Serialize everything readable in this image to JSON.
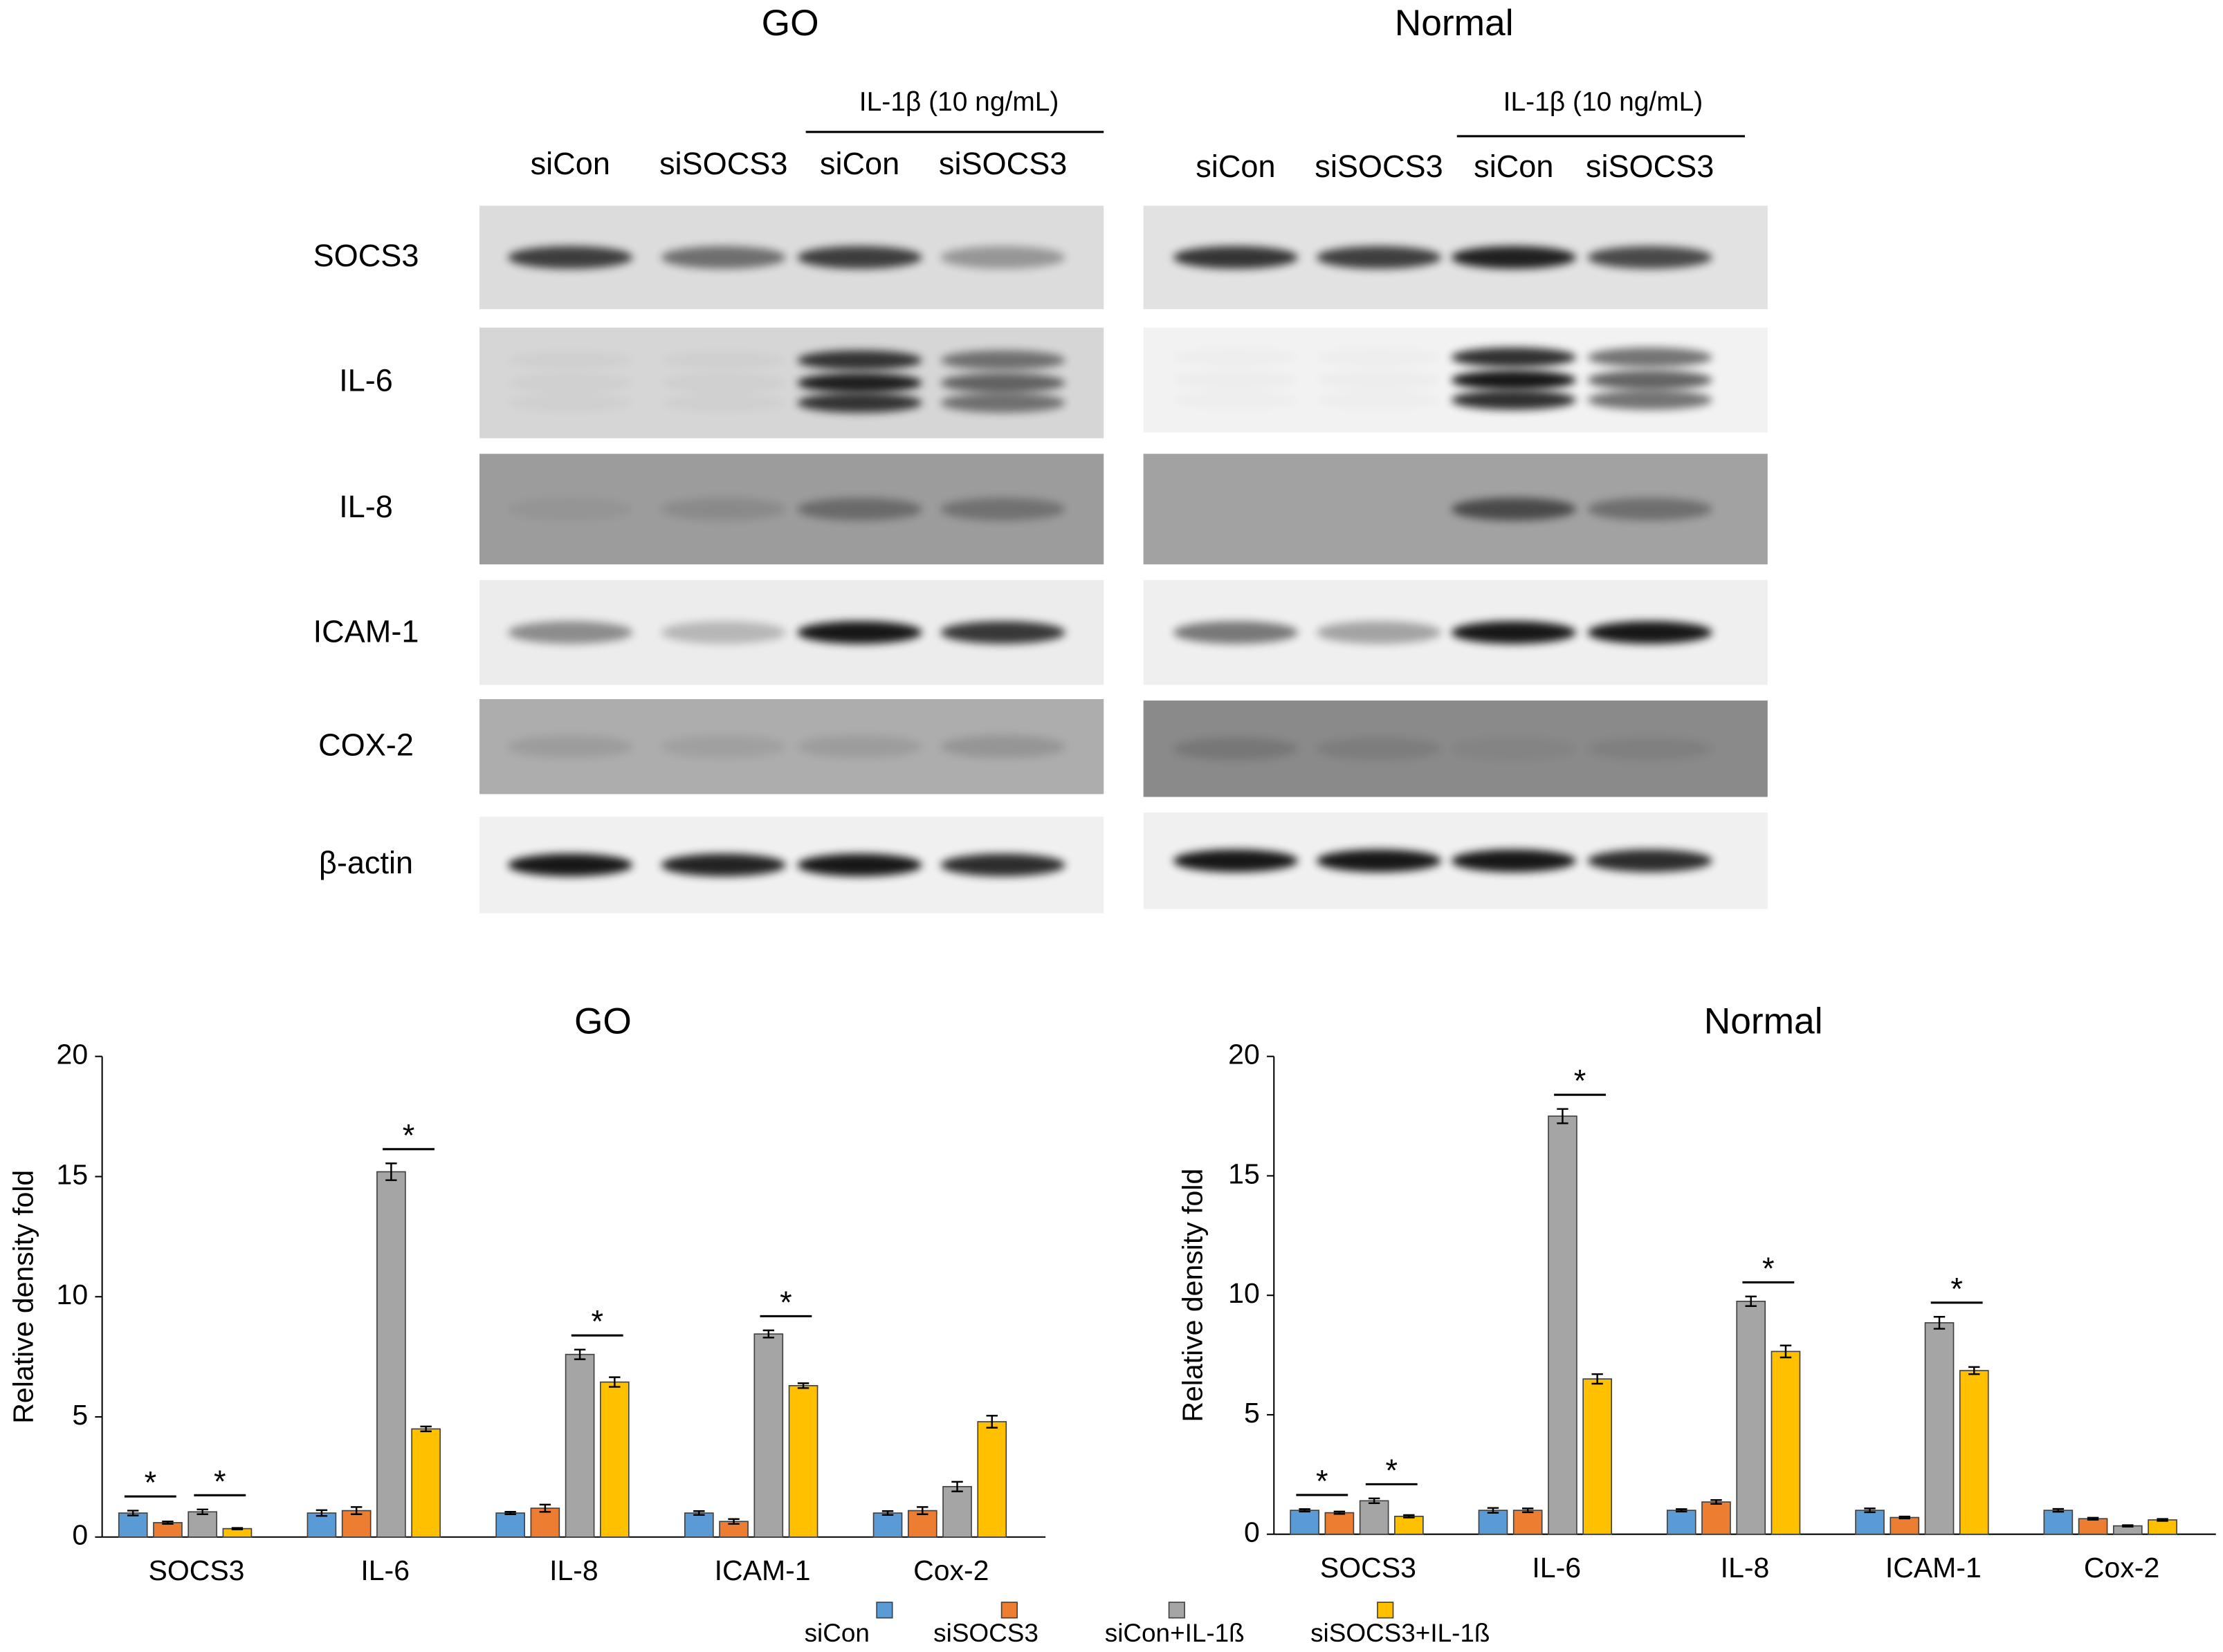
{
  "blots": {
    "proteins": [
      "SOCS3",
      "IL-6",
      "IL-8",
      "ICAM-1",
      "COX-2",
      "β-actin"
    ],
    "panels": [
      {
        "title": "GO",
        "treatment": "IL-1β (10 ng/mL)",
        "lanes": [
          "siCon",
          "siSOCS3",
          "siCon",
          "siSOCS3"
        ]
      },
      {
        "title": "Normal",
        "treatment": "IL-1β (10 ng/mL)",
        "lanes": [
          "siCon",
          "siSOCS3",
          "siCon",
          "siSOCS3"
        ]
      }
    ]
  },
  "chart_data": [
    {
      "type": "bar",
      "title": "GO",
      "ylabel": "Relative density fold",
      "categories": [
        "SOCS3",
        "IL-6",
        "IL-8",
        "ICAM-1",
        "Cox-2"
      ],
      "ylim": [
        0,
        20
      ],
      "yticks": [
        0,
        5,
        10,
        15,
        20
      ],
      "series": [
        {
          "name": "siCon",
          "color": "#5b9bd5",
          "values": [
            1,
            1,
            1,
            1,
            1
          ],
          "errors": [
            0.1,
            0.12,
            0.05,
            0.08,
            0.08
          ]
        },
        {
          "name": "siSOCS3",
          "color": "#ed7d31",
          "values": [
            0.6,
            1.1,
            1.2,
            0.65,
            1.1
          ],
          "errors": [
            0.05,
            0.15,
            0.15,
            0.1,
            0.15
          ]
        },
        {
          "name": "siCon+IL-1ß",
          "color": "#a5a5a5",
          "values": [
            1.05,
            15.2,
            7.6,
            8.45,
            2.1
          ],
          "errors": [
            0.1,
            0.35,
            0.2,
            0.15,
            0.2
          ]
        },
        {
          "name": "siSOCS3+IL-1ß",
          "color": "#ffc000",
          "values": [
            0.35,
            4.5,
            6.45,
            6.3,
            4.8
          ],
          "errors": [
            0.03,
            0.1,
            0.2,
            0.1,
            0.25
          ]
        }
      ],
      "annotations": [
        {
          "text": "*",
          "category": 0,
          "between": [
            0,
            1
          ]
        },
        {
          "text": "*",
          "category": 0,
          "between": [
            2,
            3
          ]
        },
        {
          "text": "*",
          "category": 1,
          "between": [
            2,
            3
          ]
        },
        {
          "text": "*",
          "category": 2,
          "between": [
            2,
            3
          ]
        },
        {
          "text": "*",
          "category": 3,
          "between": [
            2,
            3
          ]
        }
      ]
    },
    {
      "type": "bar",
      "title": "Normal",
      "ylabel": "Relative density fold",
      "categories": [
        "SOCS3",
        "IL-6",
        "IL-8",
        "ICAM-1",
        "Cox-2"
      ],
      "ylim": [
        0,
        20
      ],
      "yticks": [
        0,
        5,
        10,
        15,
        20
      ],
      "series": [
        {
          "color": "#5b9bd5",
          "values": [
            1,
            1,
            1,
            1,
            1
          ],
          "errors": [
            0.05,
            0.1,
            0.05,
            0.08,
            0.06
          ]
        },
        {
          "color": "#ed7d31",
          "values": [
            0.9,
            1,
            1.35,
            0.7,
            0.65
          ],
          "errors": [
            0.05,
            0.08,
            0.08,
            0.04,
            0.04
          ]
        },
        {
          "color": "#a5a5a5",
          "values": [
            1.4,
            17.5,
            9.75,
            8.85,
            0.35
          ],
          "errors": [
            0.1,
            0.3,
            0.2,
            0.25,
            0.03
          ]
        },
        {
          "color": "#ffc000",
          "values": [
            0.75,
            6.5,
            7.65,
            6.85,
            0.6
          ],
          "errors": [
            0.05,
            0.2,
            0.25,
            0.15,
            0.04
          ]
        }
      ],
      "annotations": [
        {
          "text": "*",
          "category": 0,
          "between": [
            0,
            1
          ]
        },
        {
          "text": "*",
          "category": 0,
          "between": [
            2,
            3
          ]
        },
        {
          "text": "*",
          "category": 1,
          "between": [
            2,
            3
          ]
        },
        {
          "text": "*",
          "category": 2,
          "between": [
            2,
            3
          ]
        },
        {
          "text": "*",
          "category": 3,
          "between": [
            2,
            3
          ]
        }
      ]
    }
  ]
}
